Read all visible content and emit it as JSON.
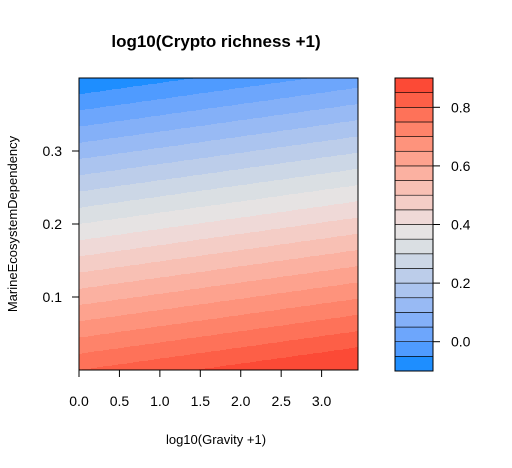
{
  "chart_data": {
    "type": "heatmap",
    "title": "log10(Crypto richness +1)",
    "xlabel": "log10(Gravity +1)",
    "ylabel": "MarineEcosystemDependency",
    "xlim": [
      0,
      3.45
    ],
    "ylim": [
      0,
      0.4
    ],
    "x_ticks": [
      "0.0",
      "0.5",
      "1.0",
      "1.5",
      "2.0",
      "2.5",
      "3.0"
    ],
    "x_tick_values": [
      0,
      0.5,
      1.0,
      1.5,
      2.0,
      2.5,
      3.0
    ],
    "y_ticks": [
      "0.1",
      "0.2",
      "0.3"
    ],
    "y_tick_values": [
      0.1,
      0.2,
      0.3
    ],
    "surface": {
      "description_of_values": "predicted value at corners of plotted domain",
      "corners": [
        {
          "x": 0,
          "y": 0,
          "z": 0.8
        },
        {
          "x": 3.45,
          "y": 0,
          "z": 0.92
        },
        {
          "x": 0,
          "y": 0.4,
          "z": -0.1
        },
        {
          "x": 3.45,
          "y": 0.4,
          "z": 0.02
        }
      ]
    },
    "colorkey": {
      "breaks": [
        -0.1,
        -0.05,
        0.0,
        0.05,
        0.1,
        0.15,
        0.2,
        0.25,
        0.3,
        0.35,
        0.4,
        0.45,
        0.5,
        0.55,
        0.6,
        0.65,
        0.7,
        0.75,
        0.8,
        0.85,
        0.9
      ],
      "colors": [
        "#1e8eff",
        "#4f9bff",
        "#6da6fc",
        "#84b0f8",
        "#98baf4",
        "#abc4ef",
        "#bccdea",
        "#ccd7e6",
        "#dadfe3",
        "#e6e3e3",
        "#efd9d7",
        "#f4cdc6",
        "#f8c0b4",
        "#fbb1a1",
        "#fda28e",
        "#fe937c",
        "#fe836a",
        "#fe7259",
        "#fd5f47",
        "#fc4a36"
      ],
      "tick_labels": [
        "0.0",
        "0.2",
        "0.4",
        "0.6",
        "0.8"
      ],
      "tick_values": [
        0.0,
        0.2,
        0.4,
        0.6,
        0.8
      ]
    }
  }
}
